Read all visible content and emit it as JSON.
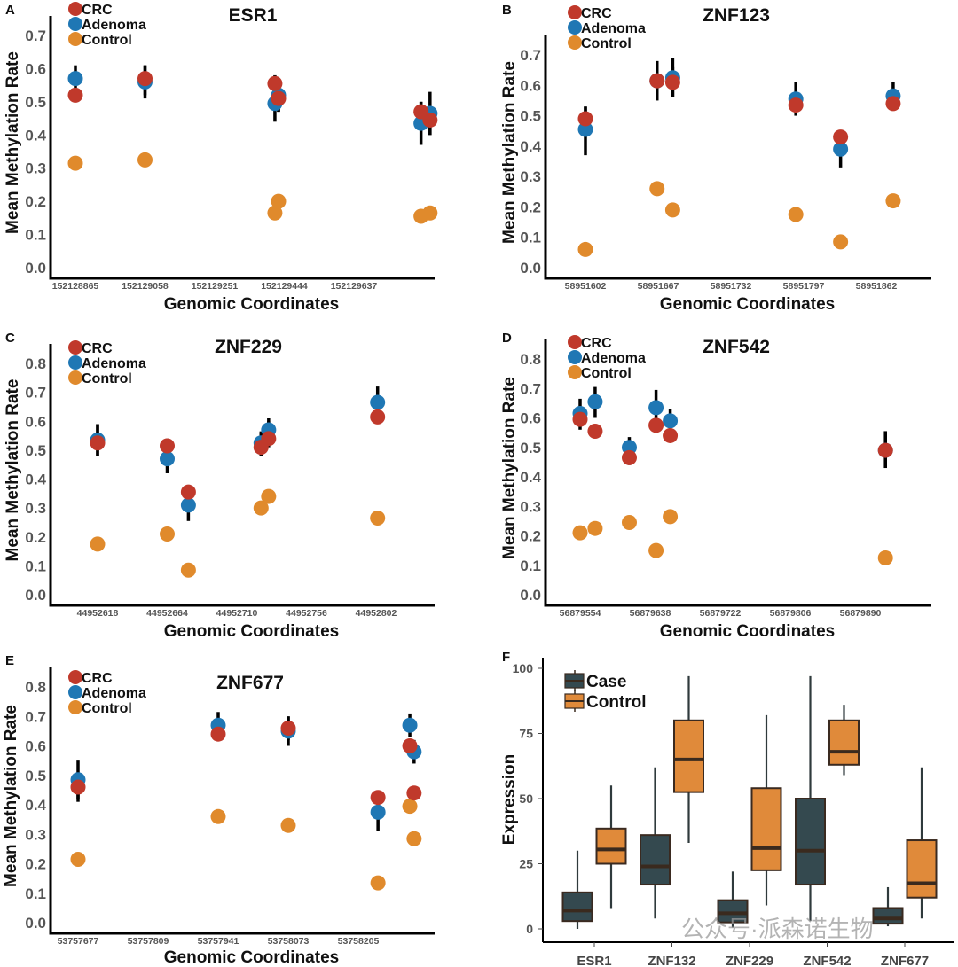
{
  "figure": {
    "watermark": "公众号·派森诺生物",
    "colors": {
      "CRC": "#c0392b",
      "Adenoma": "#1f77b4",
      "Control": "#e08a2c",
      "Case_box": "#34494f",
      "Control_box": "#e08a3a",
      "box_stroke": "#3a2a20",
      "errorbar": "#000000"
    }
  },
  "chart_data": [
    {
      "panel": "A",
      "type": "scatter",
      "title": "ESR1",
      "xlabel": "Genomic Coordinates",
      "ylabel": "Mean Methylation Rate",
      "ylim": [
        0,
        0.7
      ],
      "yticks": [
        "0.0",
        "0.1",
        "0.2",
        "0.3",
        "0.4",
        "0.5",
        "0.6",
        "0.7"
      ],
      "xticks": [
        "152128865",
        "152129058",
        "152129251",
        "152129444",
        "152129637"
      ],
      "legend": [
        "CRC",
        "Adenoma",
        "Control"
      ],
      "legend_position": "top-left",
      "series": [
        {
          "name": "CRC",
          "points": [
            {
              "x": 152128865,
              "y": 0.52,
              "err": [
                0.5,
                0.54
              ]
            },
            {
              "x": 152129058,
              "y": 0.57,
              "err": [
                0.52,
                0.61
              ]
            },
            {
              "x": 152129418,
              "y": 0.555,
              "err": [
                0.53,
                0.58
              ]
            },
            {
              "x": 152129428,
              "y": 0.51,
              "err": [
                0.47,
                0.53
              ]
            },
            {
              "x": 152129823,
              "y": 0.47,
              "err": [
                0.43,
                0.5
              ]
            },
            {
              "x": 152129848,
              "y": 0.445,
              "err": [
                0.4,
                0.47
              ]
            }
          ]
        },
        {
          "name": "Adenoma",
          "points": [
            {
              "x": 152128865,
              "y": 0.57,
              "err": [
                0.53,
                0.61
              ]
            },
            {
              "x": 152129058,
              "y": 0.56,
              "err": [
                0.51,
                0.61
              ]
            },
            {
              "x": 152129418,
              "y": 0.495,
              "err": [
                0.44,
                0.54
              ]
            },
            {
              "x": 152129428,
              "y": 0.52,
              "err": [
                0.47,
                0.55
              ]
            },
            {
              "x": 152129823,
              "y": 0.435,
              "err": [
                0.37,
                0.5
              ]
            },
            {
              "x": 152129848,
              "y": 0.465,
              "err": [
                0.4,
                0.53
              ]
            }
          ]
        },
        {
          "name": "Control",
          "points": [
            {
              "x": 152128865,
              "y": 0.315
            },
            {
              "x": 152129058,
              "y": 0.325
            },
            {
              "x": 152129418,
              "y": 0.165
            },
            {
              "x": 152129428,
              "y": 0.2
            },
            {
              "x": 152129823,
              "y": 0.155
            },
            {
              "x": 152129848,
              "y": 0.165
            }
          ]
        }
      ]
    },
    {
      "panel": "B",
      "type": "scatter",
      "title": "ZNF123",
      "xlabel": "Genomic Coordinates",
      "ylabel": "Mean Methylation Rate",
      "ylim": [
        0,
        0.7
      ],
      "yticks": [
        "0.0",
        "0.1",
        "0.2",
        "0.3",
        "0.4",
        "0.5",
        "0.6",
        "0.7"
      ],
      "xticks": [
        "58951602",
        "58951667",
        "58951732",
        "58951797",
        "58951862"
      ],
      "legend": [
        "CRC",
        "Adenoma",
        "Control"
      ],
      "legend_position": "top-left",
      "series": [
        {
          "name": "CRC",
          "points": [
            {
              "x": 58951602,
              "y": 0.49,
              "err": [
                0.45,
                0.53
              ]
            },
            {
              "x": 58951666,
              "y": 0.615,
              "err": [
                0.55,
                0.68
              ]
            },
            {
              "x": 58951680,
              "y": 0.61,
              "err": [
                0.56,
                0.66
              ]
            },
            {
              "x": 58951790,
              "y": 0.535,
              "err": [
                0.5,
                0.57
              ]
            },
            {
              "x": 58951830,
              "y": 0.43,
              "err": [
                0.41,
                0.45
              ]
            },
            {
              "x": 58951877,
              "y": 0.54,
              "err": [
                0.52,
                0.56
              ]
            }
          ]
        },
        {
          "name": "Adenoma",
          "points": [
            {
              "x": 58951602,
              "y": 0.455,
              "err": [
                0.37,
                0.53
              ]
            },
            {
              "x": 58951666,
              "y": 0.615,
              "err": [
                0.56,
                0.67
              ]
            },
            {
              "x": 58951680,
              "y": 0.625,
              "err": [
                0.56,
                0.69
              ]
            },
            {
              "x": 58951790,
              "y": 0.555,
              "err": [
                0.51,
                0.61
              ]
            },
            {
              "x": 58951830,
              "y": 0.39,
              "err": [
                0.33,
                0.44
              ]
            },
            {
              "x": 58951877,
              "y": 0.565,
              "err": [
                0.53,
                0.61
              ]
            }
          ]
        },
        {
          "name": "Control",
          "points": [
            {
              "x": 58951602,
              "y": 0.06
            },
            {
              "x": 58951666,
              "y": 0.26
            },
            {
              "x": 58951680,
              "y": 0.19
            },
            {
              "x": 58951790,
              "y": 0.175
            },
            {
              "x": 58951830,
              "y": 0.085
            },
            {
              "x": 58951877,
              "y": 0.22
            }
          ]
        }
      ]
    },
    {
      "panel": "C",
      "type": "scatter",
      "title": "ZNF229",
      "xlabel": "Genomic Coordinates",
      "ylabel": "Mean Methylation Rate",
      "ylim": [
        0,
        0.8
      ],
      "yticks": [
        "0.0",
        "0.1",
        "0.2",
        "0.3",
        "0.4",
        "0.5",
        "0.6",
        "0.7",
        "0.8"
      ],
      "xticks": [
        "44952618",
        "44952664",
        "44952710",
        "44952756",
        "44952802"
      ],
      "legend": [
        "CRC",
        "Adenoma",
        "Control"
      ],
      "legend_position": "top-left",
      "series": [
        {
          "name": "CRC",
          "points": [
            {
              "x": 44952618,
              "y": 0.525,
              "err": [
                0.48,
                0.59
              ]
            },
            {
              "x": 44952664,
              "y": 0.515,
              "err": [
                0.49,
                0.54
              ]
            },
            {
              "x": 44952678,
              "y": 0.355,
              "err": [
                0.33,
                0.38
              ]
            },
            {
              "x": 44952726,
              "y": 0.51,
              "err": [
                0.48,
                0.56
              ]
            },
            {
              "x": 44952731,
              "y": 0.54,
              "err": [
                0.51,
                0.6
              ]
            },
            {
              "x": 44952803,
              "y": 0.615,
              "err": [
                0.59,
                0.64
              ]
            }
          ]
        },
        {
          "name": "Adenoma",
          "points": [
            {
              "x": 44952618,
              "y": 0.535,
              "err": [
                0.48,
                0.59
              ]
            },
            {
              "x": 44952664,
              "y": 0.47,
              "err": [
                0.42,
                0.51
              ]
            },
            {
              "x": 44952678,
              "y": 0.31,
              "err": [
                0.255,
                0.36
              ]
            },
            {
              "x": 44952726,
              "y": 0.525,
              "err": [
                0.48,
                0.565
              ]
            },
            {
              "x": 44952731,
              "y": 0.57,
              "err": [
                0.53,
                0.61
              ]
            },
            {
              "x": 44952803,
              "y": 0.665,
              "err": [
                0.62,
                0.72
              ]
            }
          ]
        },
        {
          "name": "Control",
          "points": [
            {
              "x": 44952618,
              "y": 0.175
            },
            {
              "x": 44952664,
              "y": 0.21
            },
            {
              "x": 44952678,
              "y": 0.085
            },
            {
              "x": 44952726,
              "y": 0.3
            },
            {
              "x": 44952731,
              "y": 0.34
            },
            {
              "x": 44952803,
              "y": 0.265
            }
          ]
        }
      ]
    },
    {
      "panel": "D",
      "type": "scatter",
      "title": "ZNF542",
      "xlabel": "Genomic Coordinates",
      "ylabel": "Mean Methylation Rate",
      "ylim": [
        0,
        0.8
      ],
      "yticks": [
        "0.0",
        "0.1",
        "0.2",
        "0.3",
        "0.4",
        "0.5",
        "0.6",
        "0.7",
        "0.8"
      ],
      "xticks": [
        "56879554",
        "56879638",
        "56879722",
        "56879806",
        "56879890"
      ],
      "legend": [
        "CRC",
        "Adenoma",
        "Control"
      ],
      "legend_position": "top-left",
      "series": [
        {
          "name": "CRC",
          "points": [
            {
              "x": 56879554,
              "y": 0.595,
              "err": [
                0.56,
                0.63
              ]
            },
            {
              "x": 56879572,
              "y": 0.555,
              "err": [
                0.54,
                0.57
              ]
            },
            {
              "x": 56879613,
              "y": 0.465,
              "err": [
                0.44,
                0.49
              ]
            },
            {
              "x": 56879645,
              "y": 0.575,
              "err": [
                0.55,
                0.6
              ]
            },
            {
              "x": 56879662,
              "y": 0.54,
              "err": [
                0.52,
                0.56
              ]
            },
            {
              "x": 56879920,
              "y": 0.49,
              "err": [
                0.43,
                0.555
              ]
            }
          ]
        },
        {
          "name": "Adenoma",
          "points": [
            {
              "x": 56879554,
              "y": 0.615,
              "err": [
                0.57,
                0.665
              ]
            },
            {
              "x": 56879572,
              "y": 0.655,
              "err": [
                0.6,
                0.705
              ]
            },
            {
              "x": 56879613,
              "y": 0.5,
              "err": [
                0.48,
                0.535
              ]
            },
            {
              "x": 56879645,
              "y": 0.635,
              "err": [
                0.58,
                0.695
              ]
            },
            {
              "x": 56879662,
              "y": 0.59,
              "err": [
                0.55,
                0.63
              ]
            },
            {
              "x": 56879920,
              "y": 0.49,
              "err": [
                0.43,
                0.555
              ]
            }
          ]
        },
        {
          "name": "Control",
          "points": [
            {
              "x": 56879554,
              "y": 0.21
            },
            {
              "x": 56879572,
              "y": 0.225
            },
            {
              "x": 56879613,
              "y": 0.245
            },
            {
              "x": 56879645,
              "y": 0.15
            },
            {
              "x": 56879662,
              "y": 0.265
            },
            {
              "x": 56879920,
              "y": 0.125
            }
          ]
        }
      ]
    },
    {
      "panel": "E",
      "type": "scatter",
      "title": "ZNF677",
      "xlabel": "Genomic Coordinates",
      "ylabel": "Mean Methylation Rate",
      "ylim": [
        0,
        0.8
      ],
      "yticks": [
        "0.0",
        "0.1",
        "0.2",
        "0.3",
        "0.4",
        "0.5",
        "0.6",
        "0.7",
        "0.8"
      ],
      "xticks": [
        "53757677",
        "53757809",
        "53757941",
        "53758073",
        "53758205"
      ],
      "legend": [
        "CRC",
        "Adenoma",
        "Control"
      ],
      "legend_position": "top-left",
      "series": [
        {
          "name": "CRC",
          "points": [
            {
              "x": 53757677,
              "y": 0.46,
              "err": [
                0.42,
                0.5
              ]
            },
            {
              "x": 53757941,
              "y": 0.64,
              "err": [
                0.62,
                0.66
              ]
            },
            {
              "x": 53758073,
              "y": 0.66,
              "err": [
                0.62,
                0.7
              ]
            },
            {
              "x": 53758242,
              "y": 0.425,
              "err": [
                0.41,
                0.44
              ]
            },
            {
              "x": 53758302,
              "y": 0.6,
              "err": [
                0.58,
                0.62
              ]
            },
            {
              "x": 53758310,
              "y": 0.44,
              "err": [
                0.42,
                0.46
              ]
            }
          ]
        },
        {
          "name": "Adenoma",
          "points": [
            {
              "x": 53757677,
              "y": 0.485,
              "err": [
                0.41,
                0.55
              ]
            },
            {
              "x": 53757941,
              "y": 0.67,
              "err": [
                0.63,
                0.715
              ]
            },
            {
              "x": 53758073,
              "y": 0.65,
              "err": [
                0.6,
                0.7
              ]
            },
            {
              "x": 53758242,
              "y": 0.375,
              "err": [
                0.31,
                0.42
              ]
            },
            {
              "x": 53758302,
              "y": 0.67,
              "err": [
                0.63,
                0.71
              ]
            },
            {
              "x": 53758310,
              "y": 0.58,
              "err": [
                0.54,
                0.62
              ]
            }
          ]
        },
        {
          "name": "Control",
          "points": [
            {
              "x": 53757677,
              "y": 0.215
            },
            {
              "x": 53757941,
              "y": 0.36
            },
            {
              "x": 53758073,
              "y": 0.33
            },
            {
              "x": 53758242,
              "y": 0.135
            },
            {
              "x": 53758302,
              "y": 0.395
            },
            {
              "x": 53758310,
              "y": 0.285
            }
          ]
        }
      ]
    },
    {
      "panel": "F",
      "type": "box",
      "title": "",
      "xlabel": "",
      "ylabel": "Expression",
      "ylim": [
        0,
        100
      ],
      "yticks": [
        "0",
        "25",
        "50",
        "75",
        "100"
      ],
      "categories": [
        "ESR1",
        "ZNF132",
        "ZNF229",
        "ZNF542",
        "ZNF677"
      ],
      "legend": [
        "Case",
        "Control"
      ],
      "legend_position": "top-left",
      "series": [
        {
          "name": "Case",
          "boxes": [
            {
              "min": 0,
              "q1": 3,
              "median": 7,
              "q3": 14,
              "max": 30
            },
            {
              "min": 4,
              "q1": 17,
              "median": 24,
              "q3": 36,
              "max": 62
            },
            {
              "min": 0.5,
              "q1": 2.5,
              "median": 6,
              "q3": 11,
              "max": 22
            },
            {
              "min": 3,
              "q1": 17,
              "median": 30,
              "q3": 50,
              "max": 97
            },
            {
              "min": 1,
              "q1": 2,
              "median": 4,
              "q3": 8,
              "max": 16
            }
          ]
        },
        {
          "name": "Control",
          "boxes": [
            {
              "min": 8,
              "q1": 25,
              "median": 30.5,
              "q3": 38.5,
              "max": 55
            },
            {
              "min": 33,
              "q1": 52.5,
              "median": 65,
              "q3": 80,
              "max": 97
            },
            {
              "min": 9,
              "q1": 22.5,
              "median": 31,
              "q3": 54,
              "max": 82
            },
            {
              "min": 59,
              "q1": 63,
              "median": 68,
              "q3": 80,
              "max": 86
            },
            {
              "min": 4,
              "q1": 12,
              "median": 17.5,
              "q3": 34,
              "max": 62
            }
          ]
        }
      ]
    }
  ]
}
